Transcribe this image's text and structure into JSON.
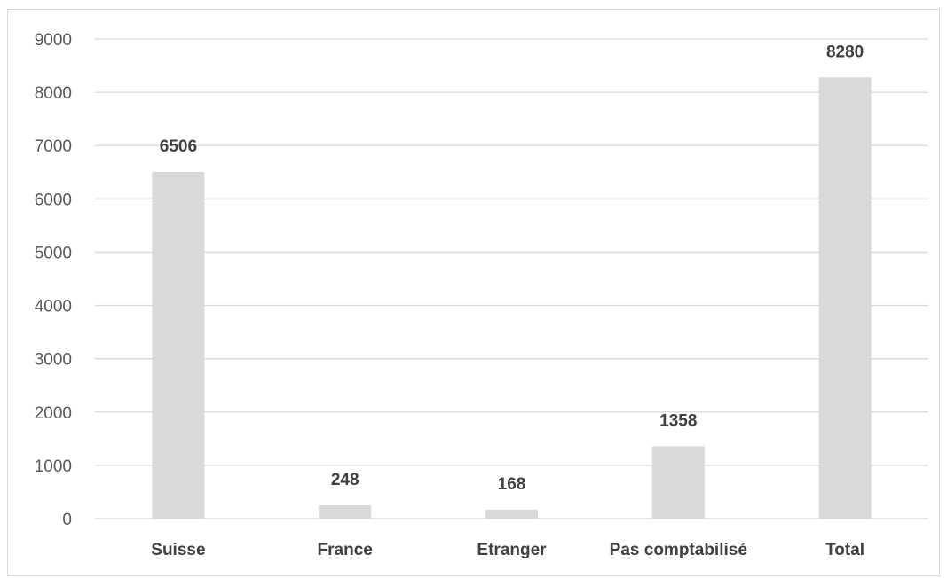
{
  "chart_data": {
    "type": "bar",
    "categories": [
      "Suisse",
      "France",
      "Etranger",
      "Pas comptabilisé",
      "Total"
    ],
    "values": [
      6506,
      248,
      168,
      1358,
      8280
    ],
    "data_labels": [
      "6506",
      "248",
      "168",
      "1358",
      "8280"
    ],
    "yticks": [
      "0",
      "1000",
      "2000",
      "3000",
      "4000",
      "5000",
      "6000",
      "7000",
      "8000",
      "9000"
    ],
    "ylim": [
      0,
      9000
    ],
    "grid": true,
    "legend": "none",
    "bar_color": "#d9d9d9",
    "grid_color": "#d9d9d9"
  }
}
